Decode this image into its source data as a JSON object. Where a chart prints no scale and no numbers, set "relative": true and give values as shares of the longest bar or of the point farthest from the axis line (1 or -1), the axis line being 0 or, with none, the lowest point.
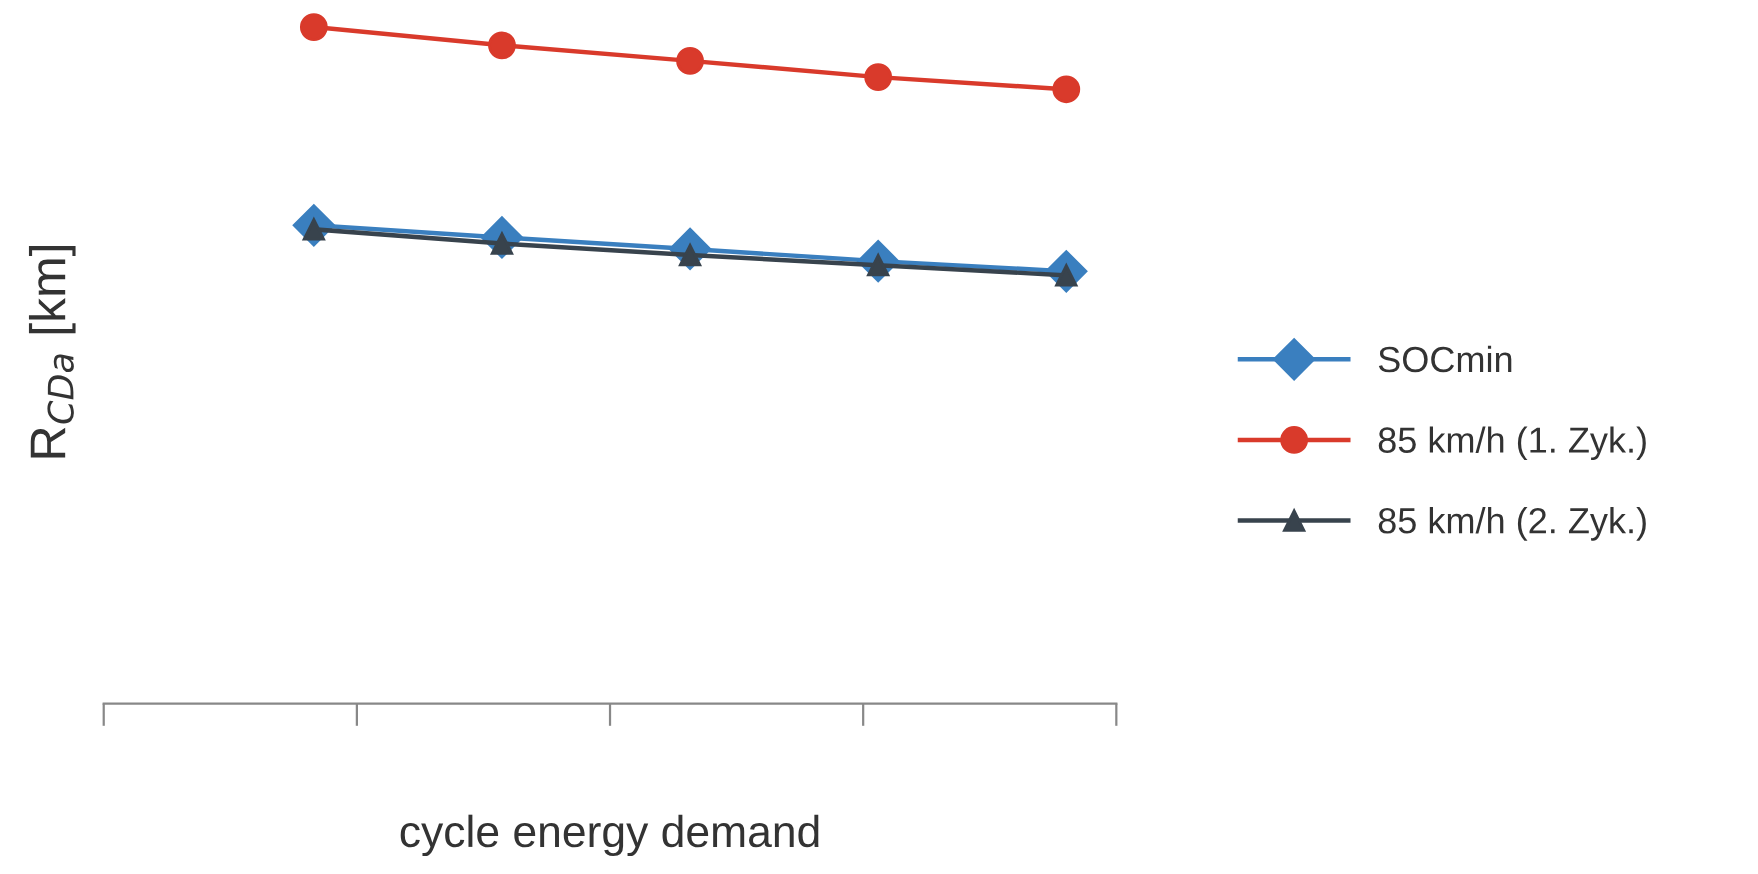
{
  "chart_data": {
    "type": "line",
    "relative": true,
    "xlabel": "cycle energy demand",
    "ylabel": "R$_{CDa}$ [km]",
    "categories": [
      null,
      null,
      null,
      null,
      null
    ],
    "series": [
      {
        "name": "SOCmin",
        "color": "#3a7fbf",
        "marker": "diamond",
        "values": [
          0.707,
          0.689,
          0.672,
          0.654,
          0.639
        ]
      },
      {
        "name": "85 km/h (1. Zyk.)",
        "color": "#d93a2b",
        "marker": "circle",
        "values": [
          1,
          0.973,
          0.95,
          0.926,
          0.908
        ]
      },
      {
        "name": "85 km/h (2. Zyk.)",
        "color": "#38434d",
        "marker": "triangle",
        "values": [
          0.701,
          0.68,
          0.663,
          0.648,
          0.633
        ]
      }
    ],
    "legend": "right",
    "grid": false,
    "tick_labels": false
  }
}
